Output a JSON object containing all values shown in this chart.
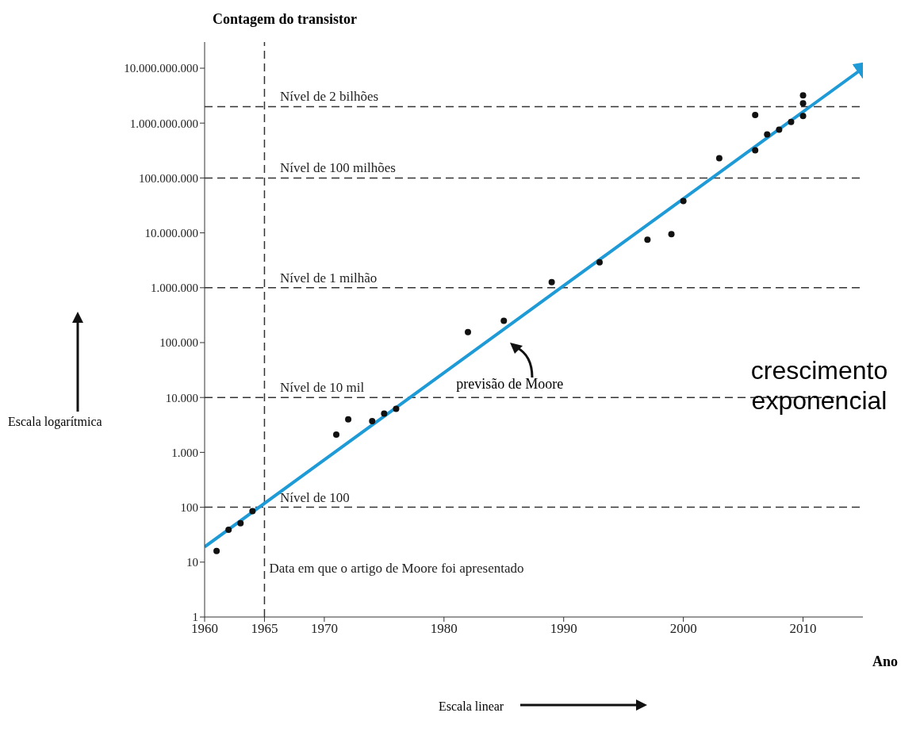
{
  "chart_data": {
    "type": "scatter",
    "xlabel": "Ano",
    "ylabel": "Contagem do transistor",
    "series": [
      {
        "type": "scatter",
        "color": "#111111",
        "x": [
          1961,
          1962,
          1963,
          1964,
          1971,
          1972,
          1974,
          1975,
          1976,
          1982,
          1985,
          1989,
          1993,
          1997,
          1999,
          2000,
          2003,
          2006,
          2006,
          2007,
          2008,
          2009,
          2010,
          2010,
          2010
        ],
        "values": [
          16,
          39,
          51,
          85,
          2100,
          4000,
          3700,
          5100,
          6200,
          155000,
          250000,
          1260000,
          2900000,
          7500000,
          9500000,
          38000000,
          230000000,
          320000000,
          1400000000,
          620000000,
          760000000,
          1050000000,
          1350000000,
          2300000000,
          3200000000
        ]
      },
      {
        "type": "line",
        "color": "#1e9bd7",
        "marker": "none",
        "x": [
          1960,
          2015
        ],
        "values": [
          19,
          10000000000
        ]
      }
    ],
    "log": "y",
    "grid": false,
    "legend": false,
    "marker": "circle",
    "xlim": [
      1960,
      2015
    ],
    "xticks": [
      1960,
      1965,
      1970,
      1980,
      1990,
      2000,
      2010
    ],
    "ylim": [
      1,
      30000000000
    ],
    "yticks": [
      {
        "value": 1,
        "label": "1"
      },
      {
        "value": 10,
        "label": "10"
      },
      {
        "value": 100,
        "label": "100"
      },
      {
        "value": 1000,
        "label": "1.000"
      },
      {
        "value": 10000,
        "label": "10.000"
      },
      {
        "value": 100000,
        "label": "100.000"
      },
      {
        "value": 1000000,
        "label": "1.000.000"
      },
      {
        "value": 10000000,
        "label": "10.000.000"
      },
      {
        "value": 100000000,
        "label": "100.000.000"
      },
      {
        "value": 1000000000,
        "label": "1.000.000.000"
      },
      {
        "value": 10000000000,
        "label": "10.000.000.000"
      }
    ],
    "ref_lines": [
      {
        "axis": "y",
        "value": 2000000000,
        "label": "Nível de 2 bilhões",
        "line_style": "dashed"
      },
      {
        "axis": "y",
        "value": 100000000,
        "label": "Nível de 100 milhões",
        "line_style": "dashed"
      },
      {
        "axis": "y",
        "value": 1000000,
        "label": "Nível de 1 milhão",
        "line_style": "dashed"
      },
      {
        "axis": "y",
        "value": 10000,
        "label": "Nível de 10 mil",
        "line_style": "dashed"
      },
      {
        "axis": "y",
        "value": 100,
        "label": "Nível de 100",
        "line_style": "dashed"
      },
      {
        "axis": "x",
        "value": 1965,
        "label": "Data em que o artigo de Moore foi apresentado",
        "line_style": "dashed"
      }
    ],
    "annotations": [
      "previsão de Moore",
      "crescimento exponencial",
      "Escala logarítmica",
      "Escala linear"
    ]
  }
}
